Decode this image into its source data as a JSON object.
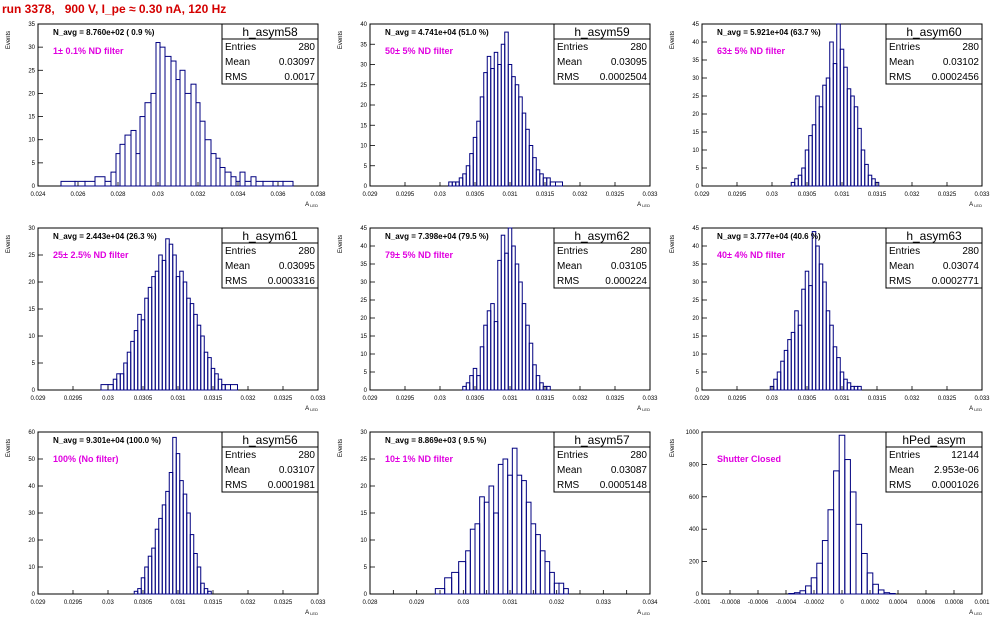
{
  "title": "run 3378,   900 V, I_pe ≈ 0.30 nA, 120 Hz",
  "stat_labels": {
    "entries": "Entries",
    "mean": "Mean",
    "rms": "RMS"
  },
  "colors": {
    "histogram": "#000080",
    "annotation": "#e000e0",
    "title": "#d40000",
    "frame": "#000000"
  },
  "chart_data": [
    {
      "type": "bar",
      "name": "h_asym58",
      "xlabel": "A_LED",
      "ylabel": "Events",
      "navg": "N_avg = 8.760e+02 ( 0.9 %)",
      "note": "1± 0.1% ND filter",
      "entries": "280",
      "mean": "0.03097",
      "rms": "0.0017",
      "xlim": [
        0.024,
        0.038
      ],
      "ylim": [
        0,
        35
      ],
      "xticks": [
        0.024,
        0.026,
        0.028,
        0.03,
        0.032,
        0.034,
        0.036,
        0.038
      ],
      "xticklabels": [
        "0.024",
        "0.026",
        "0.028",
        "0.03",
        "0.032",
        "0.034",
        "0.036",
        "0.038"
      ],
      "yticks": [
        0,
        5,
        10,
        15,
        20,
        25,
        30,
        35
      ],
      "x": [
        0.0255,
        0.0262,
        0.0265,
        0.0272,
        0.0275,
        0.0278,
        0.028,
        0.0282,
        0.0285,
        0.0288,
        0.029,
        0.0292,
        0.0295,
        0.0298,
        0.03,
        0.0302,
        0.0305,
        0.0308,
        0.031,
        0.0312,
        0.0315,
        0.0318,
        0.032,
        0.0322,
        0.0325,
        0.0328,
        0.033,
        0.0332,
        0.0335,
        0.0338,
        0.034,
        0.0342,
        0.0345,
        0.0348,
        0.035,
        0.0355,
        0.036,
        0.0365
      ],
      "values": [
        1,
        1,
        1,
        2,
        1,
        3,
        7,
        9,
        11,
        12,
        7,
        15,
        18,
        20,
        31,
        30,
        28,
        27,
        23,
        25,
        20,
        22,
        18,
        14,
        10,
        7,
        6,
        4,
        3,
        2,
        1,
        3,
        1,
        2,
        1,
        1,
        1,
        1
      ]
    },
    {
      "type": "bar",
      "name": "h_asym59",
      "xlabel": "A_LED",
      "ylabel": "Events",
      "navg": "N_avg = 4.741e+04 (51.0 %)",
      "note": "50± 5% ND filter",
      "entries": "280",
      "mean": "0.03095",
      "rms": "0.0002504",
      "xlim": [
        0.029,
        0.033
      ],
      "ylim": [
        0,
        40
      ],
      "xticks": [
        0.029,
        0.0295,
        0.03,
        0.0305,
        0.031,
        0.0315,
        0.032,
        0.0325,
        0.033
      ],
      "xticklabels": [
        "0.029",
        "0.0295",
        "0.03",
        "0.0305",
        "0.031",
        "0.0315",
        "0.032",
        "0.0325",
        "0.033"
      ],
      "yticks": [
        0,
        5,
        10,
        15,
        20,
        25,
        30,
        35,
        40
      ],
      "x": [
        0.03015,
        0.0302,
        0.03025,
        0.0303,
        0.03035,
        0.0304,
        0.03045,
        0.0305,
        0.03055,
        0.0306,
        0.03065,
        0.0307,
        0.03075,
        0.0308,
        0.03085,
        0.0309,
        0.03095,
        0.031,
        0.03105,
        0.0311,
        0.03115,
        0.0312,
        0.03125,
        0.0313,
        0.03135,
        0.0314,
        0.03145,
        0.0315,
        0.03155,
        0.0316,
        0.0317
      ],
      "values": [
        1,
        1,
        1,
        2,
        3,
        5,
        8,
        12,
        16,
        22,
        28,
        32,
        29,
        33,
        30,
        35,
        38,
        30,
        27,
        25,
        22,
        18,
        14,
        10,
        7,
        4,
        3,
        2,
        2,
        1,
        1
      ]
    },
    {
      "type": "bar",
      "name": "h_asym60",
      "xlabel": "A_LED",
      "ylabel": "Events",
      "navg": "N_avg = 5.921e+04 (63.7 %)",
      "note": "63± 5% ND filter",
      "entries": "280",
      "mean": "0.03102",
      "rms": "0.0002456",
      "xlim": [
        0.029,
        0.033
      ],
      "ylim": [
        0,
        45
      ],
      "xticks": [
        0.029,
        0.0295,
        0.03,
        0.0305,
        0.031,
        0.0315,
        0.032,
        0.0325,
        0.033
      ],
      "xticklabels": [
        "0.029",
        "0.0295",
        "0.03",
        "0.0305",
        "0.031",
        "0.0315",
        "0.032",
        "0.0325",
        "0.033"
      ],
      "yticks": [
        0,
        5,
        10,
        15,
        20,
        25,
        30,
        35,
        40,
        45
      ],
      "x": [
        0.0303,
        0.03035,
        0.0304,
        0.03045,
        0.0305,
        0.03055,
        0.0306,
        0.03065,
        0.0307,
        0.03075,
        0.0308,
        0.03085,
        0.0309,
        0.03095,
        0.031,
        0.03105,
        0.0311,
        0.03115,
        0.0312,
        0.03125,
        0.0313,
        0.03135,
        0.0314,
        0.03145,
        0.0315
      ],
      "values": [
        1,
        2,
        3,
        5,
        10,
        14,
        17,
        25,
        22,
        28,
        30,
        40,
        34,
        45,
        38,
        33,
        27,
        25,
        22,
        16,
        10,
        6,
        3,
        2,
        1
      ]
    },
    {
      "type": "bar",
      "name": "h_asym61",
      "xlabel": "A_LED",
      "ylabel": "Events",
      "navg": "N_avg = 2.443e+04 (26.3 %)",
      "note": "25± 2.5% ND filter",
      "entries": "280",
      "mean": "0.03095",
      "rms": "0.0003316",
      "xlim": [
        0.029,
        0.033
      ],
      "ylim": [
        0,
        30
      ],
      "xticks": [
        0.029,
        0.0295,
        0.03,
        0.0305,
        0.031,
        0.0315,
        0.032,
        0.0325,
        0.033
      ],
      "xticklabels": [
        "0.029",
        "0.0295",
        "0.03",
        "0.0305",
        "0.031",
        "0.0315",
        "0.032",
        "0.0325",
        "0.033"
      ],
      "yticks": [
        0,
        5,
        10,
        15,
        20,
        25,
        30
      ],
      "x": [
        0.02995,
        0.03005,
        0.0301,
        0.03015,
        0.0302,
        0.03025,
        0.0303,
        0.03035,
        0.0304,
        0.03045,
        0.0305,
        0.03055,
        0.0306,
        0.03065,
        0.0307,
        0.03075,
        0.0308,
        0.03085,
        0.0309,
        0.03095,
        0.031,
        0.03105,
        0.0311,
        0.03115,
        0.0312,
        0.03125,
        0.0313,
        0.03135,
        0.0314,
        0.03145,
        0.0315,
        0.03155,
        0.0316,
        0.03165,
        0.0317,
        0.0318
      ],
      "values": [
        1,
        1,
        2,
        3,
        3,
        5,
        7,
        9,
        11,
        14,
        13,
        17,
        19,
        21,
        22,
        25,
        24,
        28,
        27,
        25,
        21,
        22,
        20,
        17,
        16,
        14,
        12,
        10,
        7,
        6,
        4,
        3,
        2,
        1,
        1,
        1
      ]
    },
    {
      "type": "bar",
      "name": "h_asym62",
      "xlabel": "A_LED",
      "ylabel": "Events",
      "navg": "N_avg = 7.398e+04 (79.5 %)",
      "note": "79± 5% ND filter",
      "entries": "280",
      "mean": "0.03105",
      "rms": "0.000224",
      "xlim": [
        0.029,
        0.033
      ],
      "ylim": [
        0,
        45
      ],
      "xticks": [
        0.029,
        0.0295,
        0.03,
        0.0305,
        0.031,
        0.0315,
        0.032,
        0.0325,
        0.033
      ],
      "xticklabels": [
        "0.029",
        "0.0295",
        "0.03",
        "0.0305",
        "0.031",
        "0.0315",
        "0.032",
        "0.0325",
        "0.033"
      ],
      "yticks": [
        0,
        5,
        10,
        15,
        20,
        25,
        30,
        35,
        40,
        45
      ],
      "x": [
        0.03035,
        0.0304,
        0.03045,
        0.0305,
        0.03055,
        0.0306,
        0.03065,
        0.0307,
        0.03075,
        0.0308,
        0.03085,
        0.0309,
        0.03095,
        0.031,
        0.03105,
        0.0311,
        0.03115,
        0.0312,
        0.03125,
        0.0313,
        0.03135,
        0.0314,
        0.03145,
        0.0315,
        0.03155
      ],
      "values": [
        1,
        2,
        4,
        6,
        4,
        12,
        18,
        22,
        24,
        19,
        36,
        43,
        38,
        45,
        40,
        35,
        30,
        24,
        18,
        13,
        7,
        4,
        2,
        1,
        1
      ]
    },
    {
      "type": "bar",
      "name": "h_asym63",
      "xlabel": "A_LED",
      "ylabel": "Events",
      "navg": "N_avg = 3.777e+04 (40.6 %)",
      "note": "40± 4% ND filter",
      "entries": "280",
      "mean": "0.03074",
      "rms": "0.0002771",
      "xlim": [
        0.029,
        0.033
      ],
      "ylim": [
        0,
        45
      ],
      "xticks": [
        0.029,
        0.0295,
        0.03,
        0.0305,
        0.031,
        0.0315,
        0.032,
        0.0325,
        0.033
      ],
      "xticklabels": [
        "0.029",
        "0.0295",
        "0.03",
        "0.0305",
        "0.031",
        "0.0315",
        "0.032",
        "0.0325",
        "0.033"
      ],
      "yticks": [
        0,
        5,
        10,
        15,
        20,
        25,
        30,
        35,
        40,
        45
      ],
      "x": [
        0.03,
        0.03005,
        0.0301,
        0.03015,
        0.0302,
        0.03025,
        0.0303,
        0.03035,
        0.0304,
        0.03045,
        0.0305,
        0.03055,
        0.0306,
        0.03065,
        0.0307,
        0.03075,
        0.0308,
        0.03085,
        0.0309,
        0.03095,
        0.031,
        0.03105,
        0.0311,
        0.03115,
        0.0312,
        0.03125
      ],
      "values": [
        1,
        3,
        5,
        8,
        11,
        14,
        16,
        22,
        18,
        28,
        33,
        29,
        44,
        40,
        35,
        30,
        22,
        18,
        12,
        9,
        5,
        3,
        2,
        1,
        1,
        1
      ]
    },
    {
      "type": "bar",
      "name": "h_asym56",
      "xlabel": "A_LED",
      "ylabel": "Events",
      "navg": "N_avg = 9.301e+04 (100.0 %)",
      "note": "100% (No filter)",
      "entries": "280",
      "mean": "0.03107",
      "rms": "0.0001981",
      "xlim": [
        0.029,
        0.033
      ],
      "ylim": [
        0,
        60
      ],
      "xticks": [
        0.029,
        0.0295,
        0.03,
        0.0305,
        0.031,
        0.0315,
        0.032,
        0.0325,
        0.033
      ],
      "xticklabels": [
        "0.029",
        "0.0295",
        "0.03",
        "0.0305",
        "0.031",
        "0.0315",
        "0.032",
        "0.0325",
        "0.033"
      ],
      "yticks": [
        0,
        10,
        20,
        30,
        40,
        50,
        60
      ],
      "x": [
        0.0304,
        0.03045,
        0.0305,
        0.03055,
        0.0306,
        0.03065,
        0.0307,
        0.03075,
        0.0308,
        0.03085,
        0.0309,
        0.03095,
        0.031,
        0.03105,
        0.0311,
        0.03115,
        0.0312,
        0.03125,
        0.0313,
        0.03135,
        0.0314,
        0.03145
      ],
      "values": [
        1,
        2,
        6,
        10,
        14,
        17,
        24,
        28,
        33,
        38,
        45,
        58,
        52,
        42,
        37,
        30,
        22,
        15,
        10,
        4,
        2,
        1
      ]
    },
    {
      "type": "bar",
      "name": "h_asym57",
      "xlabel": "A_LED",
      "ylabel": "Events",
      "navg": "N_avg = 8.869e+03 ( 9.5 %)",
      "note": "10± 1% ND filter",
      "entries": "280",
      "mean": "0.03087",
      "rms": "0.0005148",
      "xlim": [
        0.028,
        0.034
      ],
      "ylim": [
        0,
        30
      ],
      "xticks": [
        0.028,
        0.0285,
        0.029,
        0.0295,
        0.03,
        0.0305,
        0.031,
        0.0315,
        0.032,
        0.0325,
        0.033,
        0.0335,
        0.034
      ],
      "xticklabels": [
        "0.028",
        "",
        "0.029",
        "",
        "0.03",
        "",
        "0.031",
        "",
        "0.032",
        "",
        "0.033",
        "",
        "0.034"
      ],
      "yticks": [
        0,
        5,
        10,
        15,
        20,
        25,
        30
      ],
      "x": [
        0.0295,
        0.0297,
        0.0298,
        0.03,
        0.0301,
        0.0302,
        0.0303,
        0.0304,
        0.0305,
        0.0306,
        0.0307,
        0.0308,
        0.0309,
        0.031,
        0.0311,
        0.0312,
        0.0313,
        0.0314,
        0.0315,
        0.0316,
        0.0317,
        0.0318,
        0.0319,
        0.032,
        0.0321,
        0.0322
      ],
      "values": [
        1,
        3,
        4,
        6,
        8,
        12,
        13,
        18,
        17,
        20,
        15,
        24,
        25,
        22,
        27,
        22,
        21,
        17,
        13,
        11,
        8,
        6,
        4,
        2,
        2,
        1
      ]
    },
    {
      "type": "bar",
      "name": "hPed_asym",
      "xlabel": "A_LED",
      "ylabel": "Events",
      "navg": "",
      "note": "Shutter Closed",
      "entries": "12144",
      "mean": "2.953e-06",
      "rms": "0.0001026",
      "xlim": [
        -0.001,
        0.001
      ],
      "ylim": [
        0,
        1000
      ],
      "xticks": [
        -0.001,
        -0.0008,
        -0.0006,
        -0.0004,
        -0.0002,
        0,
        0.0002,
        0.0004,
        0.0006,
        0.0008,
        0.001
      ],
      "xticklabels": [
        "-0.001",
        "-0.0008",
        "-0.0006",
        "-0.0004",
        "-0.0002",
        "0",
        "0.0002",
        "0.0004",
        "0.0006",
        "0.0008",
        "0.001"
      ],
      "yticks": [
        0,
        200,
        400,
        600,
        800,
        1000
      ],
      "x": [
        -0.00036,
        -0.00032,
        -0.00028,
        -0.00024,
        -0.0002,
        -0.00016,
        -0.00012,
        -8e-05,
        -4e-05,
        0,
        4e-05,
        8e-05,
        0.00012,
        0.00016,
        0.0002,
        0.00024,
        0.00028,
        0.00032,
        0.00036
      ],
      "values": [
        3,
        8,
        20,
        50,
        100,
        190,
        330,
        520,
        760,
        980,
        830,
        630,
        430,
        250,
        130,
        60,
        25,
        8,
        3
      ]
    }
  ]
}
